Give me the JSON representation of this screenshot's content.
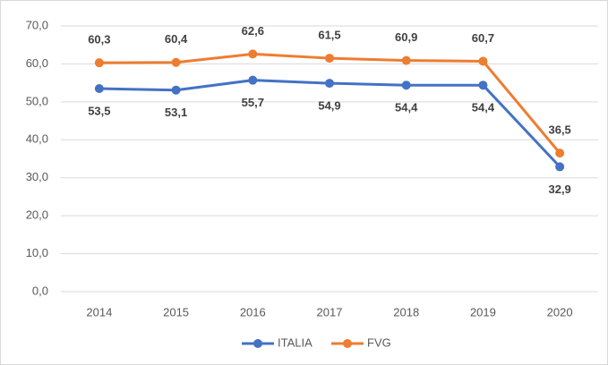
{
  "chart_data": {
    "type": "line",
    "categories": [
      "2014",
      "2015",
      "2016",
      "2017",
      "2018",
      "2019",
      "2020"
    ],
    "series": [
      {
        "name": "ITALIA",
        "color": "#4472c4",
        "values": [
          53.5,
          53.1,
          55.7,
          54.9,
          54.4,
          54.4,
          32.9
        ],
        "value_labels": [
          "53,5",
          "53,1",
          "55,7",
          "54,9",
          "54,4",
          "54,4",
          "32,9"
        ]
      },
      {
        "name": "FVG",
        "color": "#ed7d31",
        "values": [
          60.3,
          60.4,
          62.6,
          61.5,
          60.9,
          60.7,
          36.5
        ],
        "value_labels": [
          "60,3",
          "60,4",
          "62,6",
          "61,5",
          "60,9",
          "60,7",
          "36,5"
        ]
      }
    ],
    "ylim": [
      0,
      70
    ],
    "yticks": [
      {
        "value": 0,
        "label": "0,0"
      },
      {
        "value": 10,
        "label": "10,0"
      },
      {
        "value": 20,
        "label": "20,0"
      },
      {
        "value": 30,
        "label": "30,0"
      },
      {
        "value": 40,
        "label": "40,0"
      },
      {
        "value": 50,
        "label": "50,0"
      },
      {
        "value": 60,
        "label": "60,0"
      },
      {
        "value": 70,
        "label": "70,0"
      }
    ],
    "grid": true,
    "legend": "bottom"
  }
}
